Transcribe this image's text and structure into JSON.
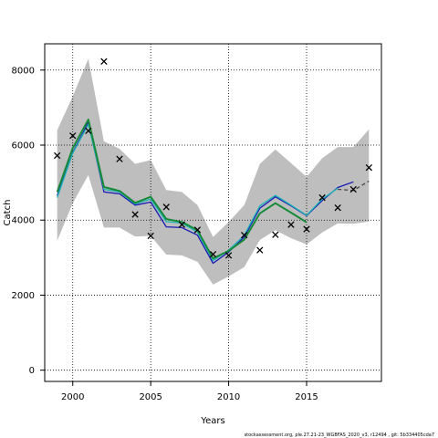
{
  "chart_data": {
    "type": "line",
    "xlabel": "Years",
    "ylabel": "Catch",
    "xlim": [
      1998.2,
      2019.8
    ],
    "ylim": [
      -300,
      8700
    ],
    "xticks": [
      2000,
      2005,
      2010,
      2015
    ],
    "xtick_labels": [
      "2000",
      "2005",
      "2010",
      "2015"
    ],
    "yticks": [
      0,
      2000,
      4000,
      6000,
      8000
    ],
    "ytick_labels": [
      "0",
      "2000",
      "4000",
      "6000",
      "8000"
    ],
    "grid": true,
    "footer": "stockassessment.org,  ple.27.21-23_WGBFAS_2020_v3,  r12494 ,  git: 5b334405cda7",
    "band": {
      "x": [
        1999,
        2000,
        2001,
        2002,
        2003,
        2004,
        2005,
        2006,
        2007,
        2008,
        2009,
        2010,
        2011,
        2012,
        2013,
        2014,
        2015,
        2016,
        2017,
        2018,
        2019
      ],
      "upper": [
        6400,
        7300,
        8300,
        6100,
        5900,
        5500,
        5600,
        4800,
        4750,
        4400,
        3550,
        3950,
        4400,
        5500,
        5880,
        5520,
        5150,
        5650,
        5950,
        5950,
        6420
      ],
      "lower": [
        3450,
        4450,
        5200,
        3800,
        3800,
        3560,
        3580,
        3080,
        3060,
        2890,
        2280,
        2500,
        2750,
        3470,
        3730,
        3520,
        3350,
        3670,
        3910,
        3900,
        3960
      ]
    },
    "series": [
      {
        "color": "#1a1ab5",
        "x": [
          1999,
          2000,
          2001,
          2002,
          2003,
          2004,
          2005,
          2006,
          2007,
          2008,
          2009,
          2010,
          2011,
          2012,
          2013,
          2014,
          2015,
          2016,
          2017,
          2018
        ],
        "values": [
          4650,
          5800,
          6600,
          4750,
          4700,
          4400,
          4480,
          3820,
          3800,
          3600,
          2850,
          3150,
          3550,
          4320,
          4620,
          4380,
          4120,
          4520,
          4870,
          5020
        ]
      },
      {
        "color": "#1fb5b5",
        "x": [
          1999,
          2000,
          2001,
          2002,
          2003,
          2004,
          2005,
          2006,
          2007,
          2008,
          2009,
          2010,
          2011,
          2012,
          2013,
          2014,
          2015,
          2016,
          2017
        ],
        "values": [
          4600,
          5780,
          6550,
          4820,
          4750,
          4430,
          4560,
          3960,
          3920,
          3680,
          2920,
          3200,
          3600,
          4380,
          4660,
          4400,
          4130,
          4560,
          4850
        ]
      },
      {
        "color": "#178a3a",
        "x": [
          1999,
          2000,
          2001,
          2002,
          2003,
          2004,
          2005,
          2006,
          2007,
          2008,
          2009,
          2010,
          2011,
          2012,
          2013,
          2014,
          2015
        ],
        "values": [
          4750,
          5920,
          6680,
          4880,
          4780,
          4460,
          4620,
          4030,
          3950,
          3730,
          2980,
          3180,
          3480,
          4180,
          4450,
          4200,
          3940
        ]
      },
      {
        "color": "#444444",
        "dashed": true,
        "x": [
          2017,
          2018,
          2019
        ],
        "values": [
          4820,
          4790,
          5040
        ]
      }
    ],
    "observations": {
      "x": [
        1999,
        2000,
        2001,
        2002,
        2003,
        2004,
        2005,
        2006,
        2007,
        2008,
        2009,
        2010,
        2011,
        2012,
        2013,
        2014,
        2015,
        2016,
        2017,
        2018,
        2019
      ],
      "values": [
        5720,
        6250,
        6380,
        8230,
        5630,
        4150,
        3580,
        4350,
        3880,
        3740,
        3090,
        3060,
        3600,
        3200,
        3610,
        3880,
        3760,
        4600,
        4330,
        4820,
        5400
      ]
    }
  }
}
